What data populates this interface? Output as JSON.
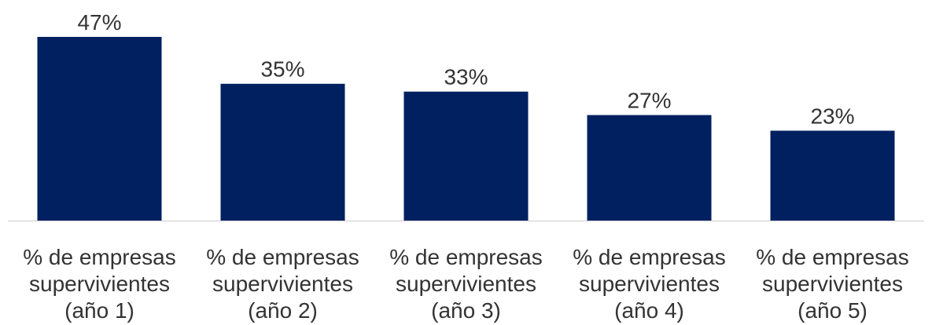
{
  "chart_data": {
    "type": "bar",
    "categories": [
      [
        "% de empresas",
        "supervivientes",
        "(año 1)"
      ],
      [
        "% de empresas",
        "supervivientes",
        "(año 2)"
      ],
      [
        "% de empresas",
        "supervivientes",
        "(año 3)"
      ],
      [
        "% de empresas",
        "supervivientes",
        "(año 4)"
      ],
      [
        "% de empresas",
        "supervivientes",
        "(año 5)"
      ]
    ],
    "values": [
      47,
      35,
      33,
      27,
      23
    ],
    "data_labels": [
      "47%",
      "35%",
      "33%",
      "27%",
      "23%"
    ],
    "ylim": [
      0,
      47
    ],
    "grid": false,
    "legend": "none",
    "bar_color": "#002060",
    "axis_color": "#d9d9d9"
  }
}
